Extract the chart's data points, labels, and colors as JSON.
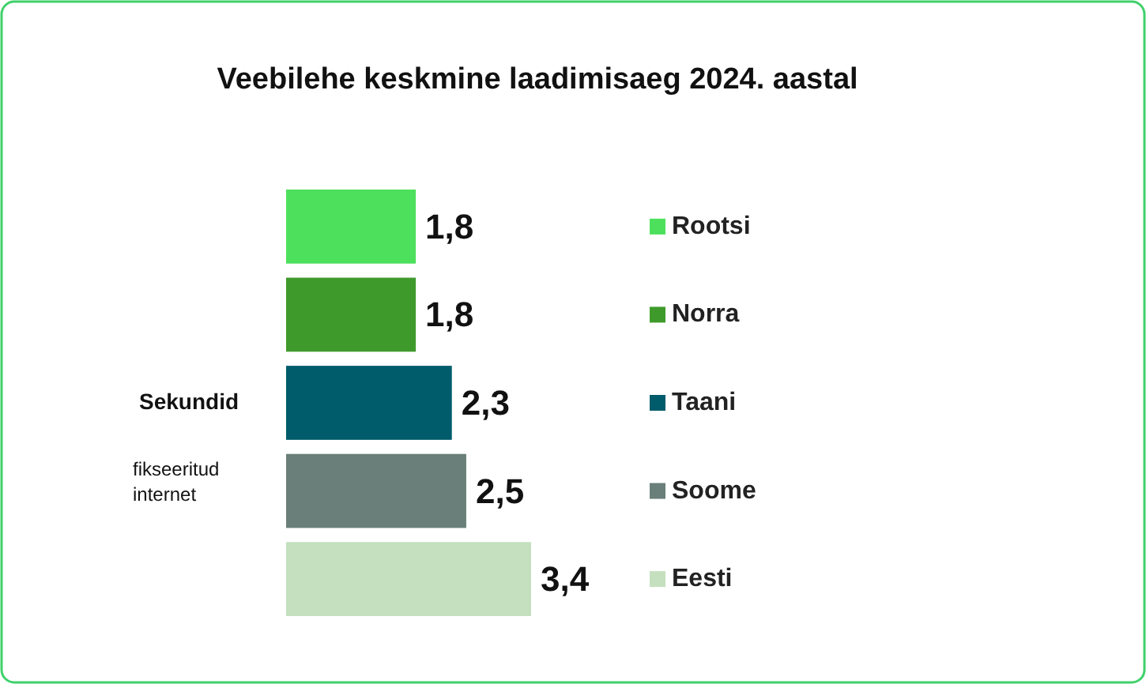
{
  "chart_data": {
    "type": "bar",
    "orientation": "horizontal",
    "stacked": true,
    "title": "Veebilehe keskmine laadimisaeg 2024. aastal",
    "annotations": [
      "Sekundid",
      "fikseeritud internet"
    ],
    "categories": [
      null,
      null,
      null,
      null,
      null
    ],
    "legend": "right",
    "series": [
      {
        "name": "Rootsi",
        "color": "#4ce05c",
        "values": [
          1.8,
          null,
          null,
          null,
          null
        ],
        "value_labels": [
          "1,8",
          null,
          null,
          null,
          null
        ]
      },
      {
        "name": "Norra",
        "color": "#3f9a2c",
        "values": [
          null,
          1.8,
          null,
          null,
          null
        ],
        "value_labels": [
          null,
          "1,8",
          null,
          null,
          null
        ]
      },
      {
        "name": "Taani",
        "color": "#005b6b",
        "values": [
          null,
          null,
          2.3,
          null,
          null
        ],
        "value_labels": [
          null,
          null,
          "2,3",
          null,
          null
        ]
      },
      {
        "name": "Soome",
        "color": "#6a7f79",
        "values": [
          null,
          null,
          null,
          2.5,
          null
        ],
        "value_labels": [
          null,
          null,
          null,
          "2,5",
          null
        ]
      },
      {
        "name": "Eesti",
        "color": "#c4e0bf",
        "values": [
          null,
          null,
          null,
          null,
          3.4
        ],
        "value_labels": [
          null,
          null,
          null,
          null,
          "3,4"
        ]
      }
    ]
  }
}
